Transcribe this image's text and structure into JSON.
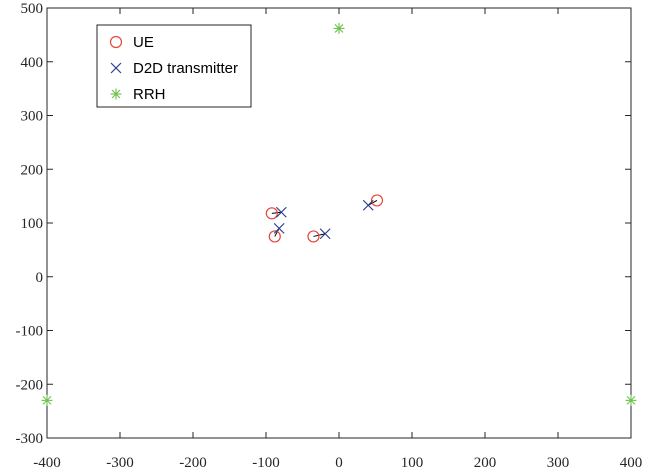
{
  "chart_data": {
    "type": "scatter",
    "xlim": [
      -400,
      400
    ],
    "ylim": [
      -300,
      500
    ],
    "xticks": [
      -400,
      -300,
      -200,
      -100,
      0,
      100,
      200,
      300,
      400
    ],
    "yticks": [
      -300,
      -200,
      -100,
      0,
      100,
      200,
      300,
      400,
      500
    ],
    "xtick_labels": [
      "-400",
      "-300",
      "-200",
      "-100",
      "0",
      "100",
      "200",
      "300",
      "400"
    ],
    "ytick_labels": [
      "-300",
      "-200",
      "-100",
      "0",
      "100",
      "200",
      "300",
      "400",
      "500"
    ],
    "grid": false,
    "legend_position": "top-left",
    "series": [
      {
        "name": "UE",
        "marker": "circle",
        "color": "#e8443a",
        "points": [
          [
            -92,
            118
          ],
          [
            -88,
            75
          ],
          [
            -35,
            75
          ],
          [
            52,
            142
          ]
        ]
      },
      {
        "name": "D2D transmitter",
        "marker": "x",
        "color": "#2b3f8f",
        "points": [
          [
            -79,
            120
          ],
          [
            -82,
            90
          ],
          [
            -19,
            80
          ],
          [
            40,
            133
          ]
        ]
      },
      {
        "name": "RRH",
        "marker": "asterisk",
        "color": "#6cc24a",
        "points": [
          [
            0,
            462
          ],
          [
            -400,
            -230
          ],
          [
            400,
            -230
          ]
        ]
      }
    ],
    "links": [
      [
        [
          -92,
          118
        ],
        [
          -79,
          120
        ]
      ],
      [
        [
          -88,
          75
        ],
        [
          -82,
          90
        ]
      ],
      [
        [
          -35,
          75
        ],
        [
          -19,
          80
        ]
      ],
      [
        [
          52,
          142
        ],
        [
          40,
          133
        ]
      ]
    ],
    "link_color": "#000000"
  }
}
